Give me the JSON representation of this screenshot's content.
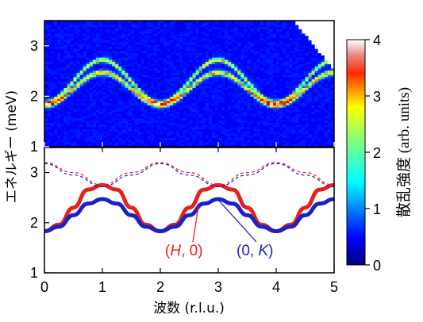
{
  "chart_data": [
    {
      "type": "heatmap",
      "title": "",
      "xlabel": "波数 (r.l.u.)",
      "ylabel": "エネルギー (meV)",
      "xlim": [
        0,
        5
      ],
      "ylim": [
        1,
        3.5
      ],
      "x_ticks": [
        0,
        1,
        2,
        3,
        4,
        5
      ],
      "x_tick_labels": [
        "0",
        "1",
        "2",
        "3",
        "4",
        "5"
      ],
      "y_ticks": [
        1,
        2,
        3
      ],
      "y_tick_labels": [
        "1",
        "2",
        "3"
      ],
      "description_series": [
        {
          "name": "upper_branch",
          "period": 2,
          "min_at_x": 0,
          "min_energy": 1.87,
          "max_energy": 2.72
        },
        {
          "name": "lower_branch",
          "period": 2,
          "min_at_x": 0,
          "min_energy": 1.82,
          "max_energy": 2.47
        }
      ],
      "colorbar": {
        "label": "散乱強度 (arb. units)",
        "range": [
          0,
          4
        ],
        "ticks": [
          0,
          1,
          2,
          3,
          4
        ],
        "tick_labels": [
          "0",
          "1",
          "2",
          "3",
          "4"
        ],
        "colormap": "jet"
      }
    },
    {
      "type": "line",
      "title": "",
      "xlim": [
        0,
        5
      ],
      "ylim": [
        1,
        3.5
      ],
      "y_ticks": [
        1,
        2,
        3
      ],
      "y_tick_labels": [
        "1",
        "2",
        "3"
      ],
      "series": [
        {
          "name": "(H, 0)",
          "color": "#e8201c",
          "style": "thick",
          "x": [
            0,
            0.25,
            0.5,
            0.75,
            1.0,
            1.25,
            1.5,
            1.75,
            2.0,
            2.25,
            2.5,
            2.75,
            3.0,
            3.25,
            3.5,
            3.75,
            4.0,
            4.25,
            4.5,
            4.75,
            5.0
          ],
          "y": [
            1.83,
            1.96,
            2.3,
            2.66,
            2.75,
            2.66,
            2.3,
            1.96,
            1.83,
            1.96,
            2.3,
            2.66,
            2.75,
            2.66,
            2.3,
            1.96,
            1.83,
            1.96,
            2.3,
            2.66,
            2.75
          ]
        },
        {
          "name": "(0, K)",
          "color": "#1a22c6",
          "style": "thick",
          "x": [
            0,
            0.25,
            0.5,
            0.75,
            1.0,
            1.25,
            1.5,
            1.75,
            2.0,
            2.25,
            2.5,
            2.75,
            3.0,
            3.25,
            3.5,
            3.75,
            4.0,
            4.25,
            4.5,
            4.75,
            5.0
          ],
          "y": [
            1.83,
            1.92,
            2.15,
            2.38,
            2.47,
            2.38,
            2.15,
            1.92,
            1.83,
            1.92,
            2.15,
            2.38,
            2.47,
            2.38,
            2.15,
            1.92,
            1.83,
            1.92,
            2.15,
            2.38,
            2.47
          ]
        },
        {
          "name": "red-dashed",
          "color": "#e8201c",
          "style": "dashed",
          "x": [
            0,
            0.5,
            1.0,
            1.5,
            2.0,
            2.5,
            3.0,
            3.5,
            4.0,
            4.5,
            5.0
          ],
          "y": [
            3.2,
            3.0,
            2.75,
            3.0,
            3.2,
            3.0,
            2.75,
            3.0,
            3.2,
            3.0,
            2.75
          ]
        },
        {
          "name": "blue-dashed",
          "color": "#1a22c6",
          "style": "dashed",
          "x": [
            0,
            0.5,
            1.0,
            1.5,
            2.0,
            2.5,
            3.0,
            3.5,
            4.0,
            4.5,
            5.0
          ],
          "y": [
            3.18,
            2.95,
            2.72,
            2.95,
            3.18,
            2.95,
            2.72,
            2.95,
            3.18,
            2.95,
            2.72
          ]
        }
      ],
      "legend": [
        {
          "text": "(H, 0)",
          "color": "#e8201c"
        },
        {
          "text": "(0, K)",
          "color": "#1a22c6"
        }
      ]
    }
  ]
}
